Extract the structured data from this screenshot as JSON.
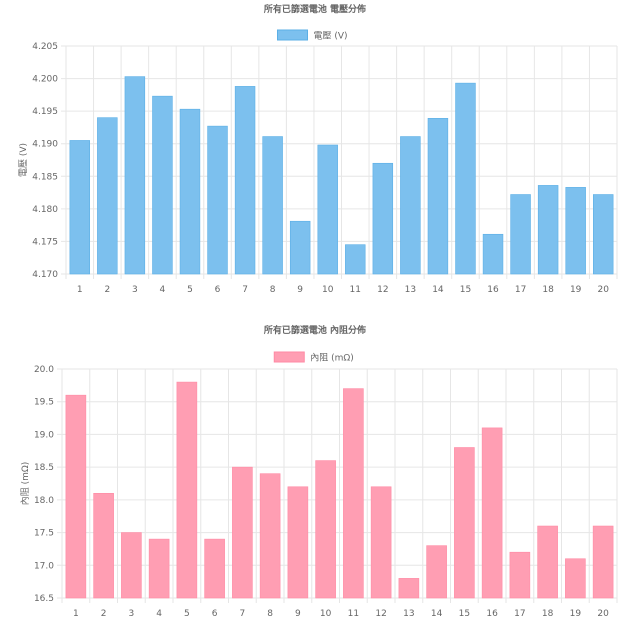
{
  "chart_data": [
    {
      "type": "bar",
      "title": "所有已篩選電池 電壓分佈",
      "series": [
        {
          "name": "電壓 (V)",
          "color": "#7cc0ee",
          "border": "#5bafe6",
          "values": [
            4.1905,
            4.194,
            4.2003,
            4.1973,
            4.1953,
            4.1927,
            4.1988,
            4.1911,
            4.1781,
            4.1898,
            4.1745,
            4.187,
            4.1911,
            4.1939,
            4.1993,
            4.1761,
            4.1822,
            4.1836,
            4.1833,
            4.1822
          ]
        }
      ],
      "categories": [
        "1",
        "2",
        "3",
        "4",
        "5",
        "6",
        "7",
        "8",
        "9",
        "10",
        "11",
        "12",
        "13",
        "14",
        "15",
        "16",
        "17",
        "18",
        "19",
        "20"
      ],
      "xlabel": "",
      "ylabel": "電壓 (V)",
      "ylim": [
        4.17,
        4.205
      ],
      "yticks": [
        "4.205",
        "4.200",
        "4.195",
        "4.190",
        "4.185",
        "4.180",
        "4.175",
        "4.170"
      ],
      "legend": "top-center",
      "grid": true
    },
    {
      "type": "bar",
      "title": "所有已篩選電池 內阻分佈",
      "series": [
        {
          "name": "內阻 (mΩ)",
          "color": "#ff9eb3",
          "border": "#ff8aa4",
          "values": [
            19.6,
            18.1,
            17.5,
            17.4,
            19.8,
            17.4,
            18.5,
            18.4,
            18.2,
            18.6,
            19.7,
            18.2,
            16.8,
            17.3,
            18.8,
            19.1,
            17.2,
            17.6,
            17.1,
            17.6
          ]
        }
      ],
      "categories": [
        "1",
        "2",
        "3",
        "4",
        "5",
        "6",
        "7",
        "8",
        "9",
        "10",
        "11",
        "12",
        "13",
        "14",
        "15",
        "16",
        "17",
        "18",
        "19",
        "20"
      ],
      "xlabel": "",
      "ylabel": "內阻 (mΩ)",
      "ylim": [
        16.5,
        20.0
      ],
      "yticks": [
        "20.0",
        "19.5",
        "19.0",
        "18.5",
        "18.0",
        "17.5",
        "17.0",
        "16.5"
      ],
      "legend": "top-center",
      "grid": true
    }
  ]
}
